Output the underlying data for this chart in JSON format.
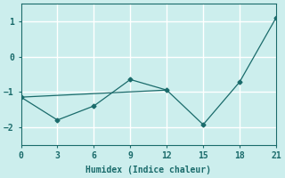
{
  "xlabel": "Humidex (Indice chaleur)",
  "bg_color": "#cceeed",
  "line_color": "#1a6b6b",
  "grid_color": "#ffffff",
  "line1_x": [
    0,
    3,
    6,
    9,
    12,
    15,
    18,
    21
  ],
  "line1_y": [
    -1.15,
    -1.8,
    -1.4,
    -0.65,
    -0.95,
    -1.93,
    -0.72,
    1.1
  ],
  "line2_x": [
    0,
    12
  ],
  "line2_y": [
    -1.15,
    -0.95
  ],
  "xlim": [
    0,
    21
  ],
  "ylim": [
    -2.5,
    1.5
  ],
  "xticks": [
    0,
    3,
    6,
    9,
    12,
    15,
    18,
    21
  ],
  "yticks": [
    -2,
    -1,
    0,
    1
  ]
}
